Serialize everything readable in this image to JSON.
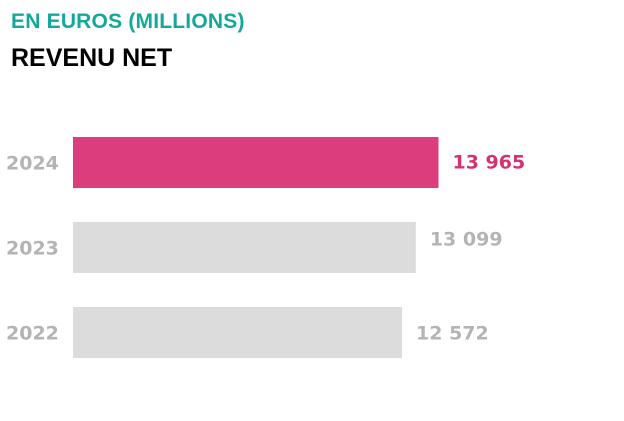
{
  "header": {
    "subtitle": "EN EUROS (MILLIONS)",
    "title": "REVENU NET"
  },
  "colors": {
    "highlight": "#dc3e7d",
    "highlight_text": "#d43272",
    "muted_bar": "#dcdcdc",
    "muted_text": "#b4b4b4",
    "subtitle": "#14a89a"
  },
  "chart_data": {
    "type": "bar",
    "orientation": "horizontal",
    "title": "REVENU NET",
    "subtitle": "EN EUROS (MILLIONS)",
    "categories": [
      "2024",
      "2023",
      "2022"
    ],
    "values": [
      13965,
      13099,
      12572
    ],
    "value_labels": [
      "13 965",
      "13 099",
      "12 572"
    ],
    "highlighted": [
      "2024"
    ],
    "grid": false,
    "legend": "none"
  }
}
